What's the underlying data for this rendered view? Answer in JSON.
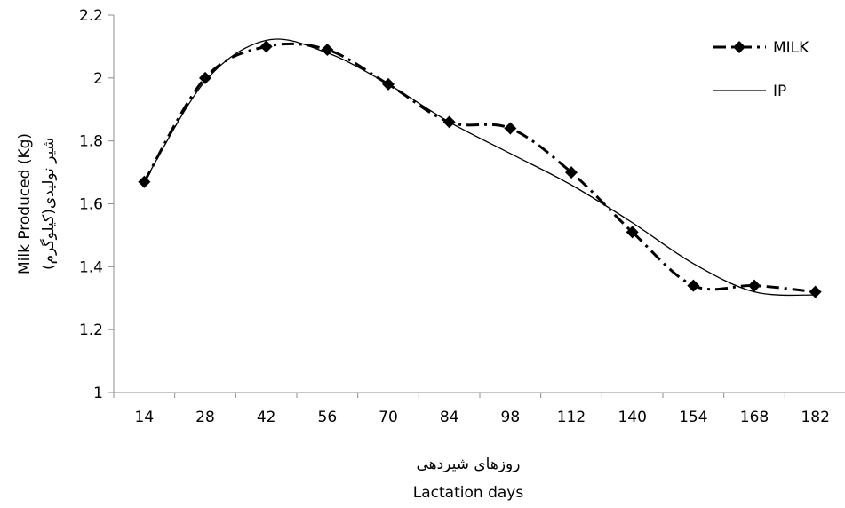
{
  "chart_data": {
    "type": "line",
    "title": "",
    "xlabel_fa": "روزهای شیردهی",
    "xlabel": "Lactation days",
    "ylabel": "Milk Produced (Kg)",
    "ylabel_fa": "شیر تولیدی(کیلوگرم)",
    "categories": [
      "14",
      "28",
      "42",
      "56",
      "70",
      "84",
      "98",
      "112",
      "140",
      "154",
      "168",
      "182"
    ],
    "ylim": [
      1,
      2.2
    ],
    "yticks": [
      "1",
      "1.2",
      "1.4",
      "1.6",
      "1.8",
      "2",
      "2.2"
    ],
    "grid": false,
    "legend_position": "top-right",
    "series": [
      {
        "name": "MILK",
        "style": "dash-dot line with diamond markers",
        "color": "#000000",
        "values": [
          1.67,
          2.0,
          2.1,
          2.09,
          1.98,
          1.86,
          1.84,
          1.7,
          1.51,
          1.34,
          1.34,
          1.32
        ]
      },
      {
        "name": "IP",
        "style": "thin solid line",
        "color": "#000000",
        "values": [
          1.67,
          1.99,
          2.12,
          2.08,
          1.98,
          1.86,
          1.76,
          1.66,
          1.54,
          1.41,
          1.32,
          1.31
        ]
      }
    ]
  }
}
